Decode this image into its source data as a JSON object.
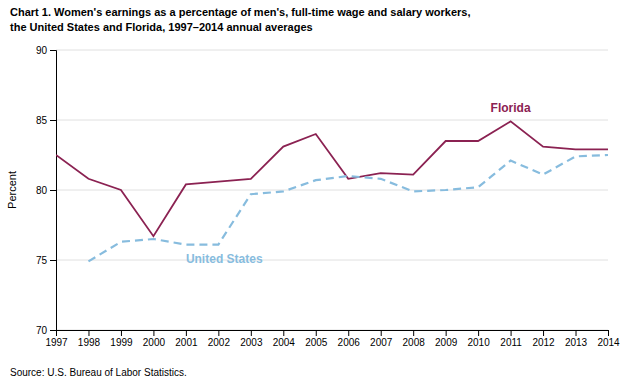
{
  "chart_data": {
    "type": "line",
    "title": "Chart 1. Women's earnings as a percentage of men's, full-time wage and salary workers,",
    "subtitle": "the United States and Florida, 1997–2014  annual averages",
    "ylabel": "Percent",
    "source": "Source: U.S. Bureau of Labor Statistics.",
    "x": [
      1997,
      1998,
      1999,
      2000,
      2001,
      2002,
      2003,
      2004,
      2005,
      2006,
      2007,
      2008,
      2009,
      2010,
      2011,
      2012,
      2013,
      2014
    ],
    "series": [
      {
        "name": "Florida",
        "color": "#8B2252",
        "line_style": "solid",
        "values": [
          82.5,
          80.8,
          80.0,
          76.7,
          80.4,
          80.6,
          80.8,
          83.1,
          84.0,
          80.8,
          81.2,
          81.1,
          83.5,
          83.5,
          84.9,
          83.1,
          82.9,
          82.9
        ]
      },
      {
        "name": "United States",
        "color": "#87BCDE",
        "line_style": "dashed",
        "values": [
          null,
          74.9,
          76.3,
          76.5,
          76.1,
          76.1,
          79.7,
          79.9,
          80.7,
          81.0,
          80.8,
          79.9,
          80.0,
          80.2,
          82.1,
          81.1,
          82.4,
          82.5
        ]
      }
    ],
    "xlim": [
      1997,
      2014
    ],
    "xticks": [
      1997,
      1998,
      1999,
      2000,
      2001,
      2002,
      2003,
      2004,
      2005,
      2006,
      2007,
      2008,
      2009,
      2010,
      2011,
      2012,
      2013,
      2014
    ],
    "ylim": [
      70,
      90
    ],
    "yticks": [
      70,
      75,
      80,
      85,
      90
    ],
    "grid": true
  }
}
